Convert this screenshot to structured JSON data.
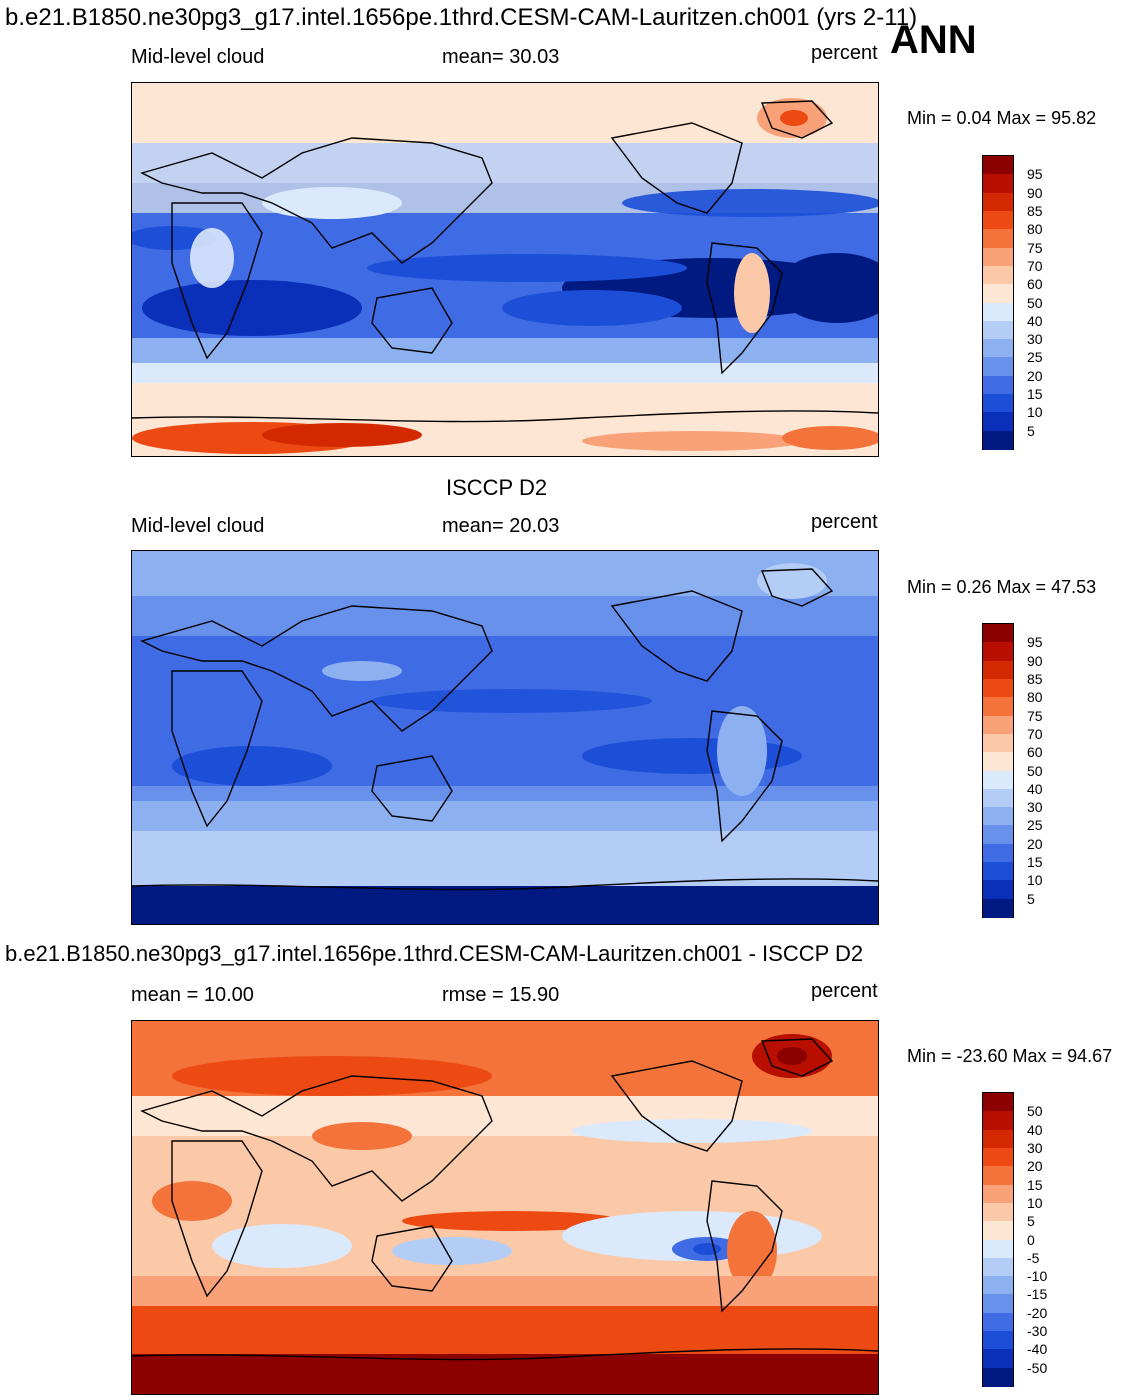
{
  "header": {
    "title": "b.e21.B1850.ne30pg3_g17.intel.1656pe.1thrd.CESM-CAM-Lauritzen.ch001 (yrs 2-11)",
    "season": "ANN"
  },
  "panels": [
    {
      "id": "model",
      "heading": "",
      "variable": "Mid-level cloud",
      "stat": "mean=  30.03",
      "units": "percent",
      "minmax": "Min =   0.04 Max =  95.82",
      "scale": "abs"
    },
    {
      "id": "obs",
      "heading": "ISCCP D2",
      "variable": "Mid-level cloud",
      "stat": "mean=  20.03",
      "units": "percent",
      "minmax": "Min =   0.26 Max =  47.53",
      "scale": "abs"
    },
    {
      "id": "diff",
      "heading": "b.e21.B1850.ne30pg3_g17.intel.1656pe.1thrd.CESM-CAM-Lauritzen.ch001 - ISCCP D2",
      "variable": "mean =  10.00",
      "stat": "rmse =  15.90",
      "units": "percent",
      "minmax": "Min = -23.60 Max =  94.67",
      "scale": "diff"
    }
  ],
  "scales": {
    "abs": {
      "ticks": [
        "95",
        "90",
        "85",
        "80",
        "75",
        "70",
        "60",
        "50",
        "40",
        "30",
        "25",
        "20",
        "15",
        "10",
        "5"
      ],
      "colors": [
        "#8c0000",
        "#b80f00",
        "#d42800",
        "#ec4a12",
        "#f4733a",
        "#f9a178",
        "#fcc9a8",
        "#fee6d4",
        "#dbe9fc",
        "#b4cdf7",
        "#8db0f0",
        "#6891ec",
        "#3f6ce4",
        "#1c4ed8",
        "#0a2fb8",
        "#001a82"
      ]
    },
    "diff": {
      "ticks": [
        "50",
        "40",
        "30",
        "20",
        "15",
        "10",
        "5",
        "0",
        "-5",
        "-10",
        "-15",
        "-20",
        "-30",
        "-40",
        "-50"
      ],
      "colors": [
        "#8c0000",
        "#b80f00",
        "#d42800",
        "#ec4a12",
        "#f4733a",
        "#f9a178",
        "#fcc9a8",
        "#fee6d4",
        "#dbe9fc",
        "#b4cdf7",
        "#8db0f0",
        "#6891ec",
        "#3f6ce4",
        "#1c4ed8",
        "#0a2fb8",
        "#001a82"
      ]
    }
  }
}
